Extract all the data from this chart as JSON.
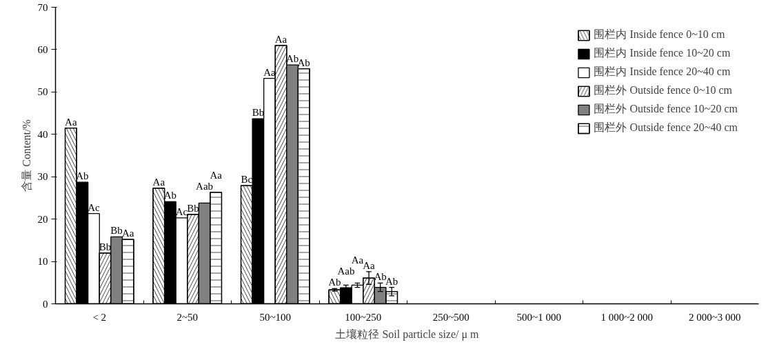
{
  "chart_data": {
    "type": "bar",
    "xlabel": "土壤粒径 Soil particle size/ μ m",
    "ylabel": "含量 Content/%",
    "categories": [
      "< 2",
      "2~50",
      "50~100",
      "100~250",
      "250~500",
      "500~1 000",
      "1 000~2 000",
      "2 000~3 000"
    ],
    "ylim": [
      0,
      70
    ],
    "yticks": [
      0,
      10,
      20,
      30,
      40,
      50,
      60,
      70
    ],
    "grid": false,
    "legend": "top right",
    "series": [
      {
        "name": "围栏内 Inside fence 0~10 cm",
        "color": "#ffffff",
        "values": [
          41.5,
          27.3,
          27.9,
          3.3,
          null,
          null,
          null,
          null
        ],
        "errors": [
          null,
          null,
          null,
          0.3,
          null,
          null,
          null,
          null
        ],
        "value_labels": [
          "Aa",
          "Aa",
          "Bc",
          "Ab",
          null,
          null,
          null,
          null
        ]
      },
      {
        "name": "围栏内 Inside fence 10~20 cm",
        "color": "#000000",
        "values": [
          28.7,
          24.1,
          43.7,
          3.8,
          null,
          null,
          null,
          null
        ],
        "errors": [
          null,
          null,
          null,
          0.6,
          null,
          null,
          null,
          null
        ],
        "value_labels": [
          "Ab",
          "Ab",
          "Bb",
          "Aab",
          null,
          null,
          null,
          null
        ]
      },
      {
        "name": "围栏内 Inside fence 20~40 cm",
        "color": "#ffffff",
        "values": [
          21.3,
          20.3,
          53.2,
          4.4,
          null,
          null,
          null,
          null
        ],
        "errors": [
          null,
          null,
          null,
          0.5,
          null,
          null,
          null,
          null
        ],
        "value_labels": [
          "Ac",
          "Ac",
          "Aa",
          "Aa",
          null,
          null,
          null,
          null
        ]
      },
      {
        "name": "围栏外 Outside fence 0~10 cm",
        "color": "#ffffff",
        "values": [
          12.0,
          21.1,
          61.0,
          6.1,
          null,
          null,
          null,
          null
        ],
        "errors": [
          null,
          null,
          null,
          1.5,
          null,
          null,
          null,
          null
        ],
        "value_labels": [
          "Bb",
          "Bb",
          "Aa",
          "Aa",
          null,
          null,
          null,
          null
        ]
      },
      {
        "name": "围栏外 Outside fence 10~20 cm",
        "color": "#808080",
        "values": [
          15.8,
          23.8,
          56.4,
          3.9,
          null,
          null,
          null,
          null
        ],
        "errors": [
          null,
          null,
          null,
          1.0,
          null,
          null,
          null,
          null
        ],
        "value_labels": [
          "Bb",
          "Aab",
          "Ab",
          "Ab",
          null,
          null,
          null,
          null
        ]
      },
      {
        "name": "围栏外 Outside fence 20~40 cm",
        "color": "#ffffff",
        "values": [
          15.2,
          26.3,
          55.5,
          2.9,
          null,
          null,
          null,
          null
        ],
        "errors": [
          null,
          null,
          null,
          1.0,
          null,
          null,
          null,
          null
        ],
        "value_labels": [
          "Aa",
          "Aa",
          "Ab",
          "Ab",
          null,
          null,
          null,
          null
        ]
      }
    ]
  }
}
